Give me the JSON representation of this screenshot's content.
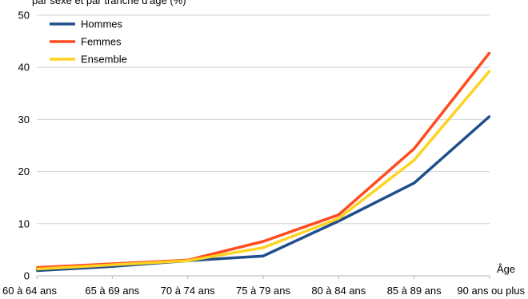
{
  "header_fragment": "par sexe et par tranche d'âge (%)",
  "chart_data": {
    "type": "line",
    "title": "",
    "xlabel": "Âge",
    "ylabel": "",
    "ylim": [
      0,
      50
    ],
    "yticks": [
      0,
      10,
      20,
      30,
      40,
      50
    ],
    "grid": true,
    "legend_position": "top-left",
    "categories": [
      "60 à 64 ans",
      "65 à 69 ans",
      "70 à 74 ans",
      "75 à 79 ans",
      "80 à 84 ans",
      "85 à 89 ans",
      "90 ans ou plus"
    ],
    "series": [
      {
        "name": "Hommes",
        "color": "#1f4e8c",
        "values": [
          1.0,
          1.8,
          2.9,
          3.8,
          10.5,
          17.8,
          30.6
        ]
      },
      {
        "name": "Femmes",
        "color": "#ff4b1f",
        "values": [
          1.6,
          2.3,
          3.0,
          6.6,
          11.7,
          24.4,
          42.8
        ]
      },
      {
        "name": "Ensemble",
        "color": "#ffd320",
        "values": [
          1.3,
          2.1,
          2.9,
          5.4,
          11.0,
          22.2,
          39.3
        ]
      }
    ]
  }
}
